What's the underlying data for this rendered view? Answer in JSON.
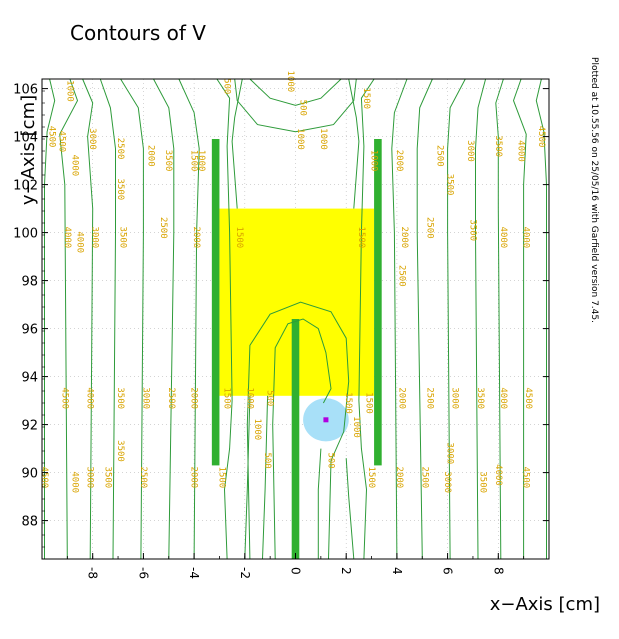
{
  "chart_data": {
    "type": "contour",
    "title": "Contours of V",
    "xlabel": "x−Axis [cm]",
    "ylabel": "y−Axis [cm]",
    "footnote": "Plotted at 10.55.56 on 25/05/16 with Garfield version 7.45.",
    "xlim": [
      -10,
      10
    ],
    "ylim": [
      86.4,
      106.4
    ],
    "x_ticks": [
      "-8",
      "-6",
      "-4",
      "-2",
      "0",
      "2",
      "4",
      "6",
      "8"
    ],
    "y_ticks": [
      "88",
      "90",
      "92",
      "94",
      "96",
      "98",
      "100",
      "102",
      "104",
      "106"
    ],
    "grid": true,
    "contour_color": "#2e9b3a",
    "label_color": "#d9a400",
    "regions": [
      {
        "name": "yellow-region",
        "color": "#ffff00",
        "x": [
          -3.0,
          3.1
        ],
        "y": [
          93.2,
          101.0
        ]
      },
      {
        "name": "left-electrode",
        "color": "#30b030",
        "x": [
          -3.3,
          -3.0
        ],
        "y": [
          90.3,
          103.9
        ]
      },
      {
        "name": "right-electrode",
        "color": "#30b030",
        "x": [
          3.1,
          3.4
        ],
        "y": [
          90.3,
          103.9
        ]
      },
      {
        "name": "center-electrode",
        "color": "#30b030",
        "x": [
          -0.15,
          0.15
        ],
        "y": [
          86.4,
          96.4
        ]
      },
      {
        "name": "light-blue-circle",
        "color": "#a8e0f8",
        "cx": 1.2,
        "cy": 92.2,
        "r": 0.9
      },
      {
        "name": "magenta-marker",
        "color": "#b000e0",
        "cx": 1.2,
        "cy": 92.2
      }
    ],
    "contour_labels": [
      {
        "text": "4500",
        "x": -9.3,
        "y": 103.8
      },
      {
        "text": "4000",
        "x": -8.8,
        "y": 102.8
      },
      {
        "text": "3000",
        "x": -8.1,
        "y": 103.9
      },
      {
        "text": "2500",
        "x": -7.0,
        "y": 103.5
      },
      {
        "text": "2000",
        "x": -5.8,
        "y": 103.2
      },
      {
        "text": "1500",
        "x": -4.1,
        "y": 103.0
      },
      {
        "text": "1000",
        "x": -3.8,
        "y": 103.0
      },
      {
        "text": "3500",
        "x": -5.1,
        "y": 103.0
      },
      {
        "text": "4500",
        "x": -9.7,
        "y": 104.0
      },
      {
        "text": "1000",
        "x": -9.0,
        "y": 105.9
      },
      {
        "text": "4500",
        "x": 9.6,
        "y": 104.0
      },
      {
        "text": "4000",
        "x": 8.8,
        "y": 103.4
      },
      {
        "text": "3500",
        "x": 7.9,
        "y": 103.6
      },
      {
        "text": "3000",
        "x": 6.8,
        "y": 103.4
      },
      {
        "text": "2500",
        "x": 5.6,
        "y": 103.2
      },
      {
        "text": "2000",
        "x": 4.0,
        "y": 103.0
      },
      {
        "text": "1000",
        "x": 3.0,
        "y": 103.0
      },
      {
        "text": "1500",
        "x": 2.7,
        "y": 105.6
      },
      {
        "text": "1000",
        "x": -0.3,
        "y": 106.3
      },
      {
        "text": "500",
        "x": 0.2,
        "y": 105.2
      },
      {
        "text": "1000",
        "x": 0.1,
        "y": 103.9
      },
      {
        "text": "1000",
        "x": 1.0,
        "y": 103.9
      },
      {
        "text": "500",
        "x": -2.8,
        "y": 106.1
      },
      {
        "text": "3500",
        "x": 6.0,
        "y": 102.0
      },
      {
        "text": "3500",
        "x": -7.0,
        "y": 101.8
      },
      {
        "text": "4000",
        "x": -9.1,
        "y": 99.8
      },
      {
        "text": "4000",
        "x": -8.6,
        "y": 99.6
      },
      {
        "text": "3000",
        "x": -8.0,
        "y": 99.8
      },
      {
        "text": "3500",
        "x": -6.9,
        "y": 99.8
      },
      {
        "text": "2500",
        "x": -5.3,
        "y": 100.2
      },
      {
        "text": "2000",
        "x": -4.0,
        "y": 99.8
      },
      {
        "text": "1500",
        "x": -2.3,
        "y": 99.8
      },
      {
        "text": "1500",
        "x": 2.5,
        "y": 99.8
      },
      {
        "text": "2000",
        "x": 4.2,
        "y": 99.8
      },
      {
        "text": "2500",
        "x": 5.2,
        "y": 100.2
      },
      {
        "text": "3500",
        "x": 6.9,
        "y": 100.1
      },
      {
        "text": "4000",
        "x": 8.1,
        "y": 99.8
      },
      {
        "text": "4000",
        "x": 9.0,
        "y": 99.8
      },
      {
        "text": "2500",
        "x": 4.1,
        "y": 98.2
      },
      {
        "text": "4500",
        "x": -9.2,
        "y": 93.1
      },
      {
        "text": "4000",
        "x": -8.2,
        "y": 93.1
      },
      {
        "text": "3500",
        "x": -7.0,
        "y": 93.1
      },
      {
        "text": "3000",
        "x": -6.0,
        "y": 93.1
      },
      {
        "text": "2500",
        "x": -5.0,
        "y": 93.1
      },
      {
        "text": "2000",
        "x": -4.1,
        "y": 93.1
      },
      {
        "text": "1500",
        "x": -2.8,
        "y": 93.1
      },
      {
        "text": "1000",
        "x": -1.9,
        "y": 93.1
      },
      {
        "text": "500",
        "x": -1.1,
        "y": 93.1
      },
      {
        "text": "1000",
        "x": -1.6,
        "y": 91.8
      },
      {
        "text": "1500",
        "x": 2.0,
        "y": 92.9
      },
      {
        "text": "1500",
        "x": 2.8,
        "y": 92.9
      },
      {
        "text": "1000",
        "x": 2.3,
        "y": 91.9
      },
      {
        "text": "2000",
        "x": 4.1,
        "y": 93.1
      },
      {
        "text": "2500",
        "x": 5.2,
        "y": 93.1
      },
      {
        "text": "3000",
        "x": 6.2,
        "y": 93.1
      },
      {
        "text": "3500",
        "x": 7.2,
        "y": 93.1
      },
      {
        "text": "4000",
        "x": 8.1,
        "y": 93.1
      },
      {
        "text": "4500",
        "x": 9.1,
        "y": 93.1
      },
      {
        "text": "3500",
        "x": -7.0,
        "y": 90.9
      },
      {
        "text": "3000",
        "x": 6.0,
        "y": 90.8
      },
      {
        "text": "500",
        "x": 1.3,
        "y": 90.5
      },
      {
        "text": "500",
        "x": -1.2,
        "y": 90.5
      },
      {
        "text": "4500",
        "x": -10.0,
        "y": 89.8
      },
      {
        "text": "4000",
        "x": -8.8,
        "y": 89.6
      },
      {
        "text": "3000",
        "x": -8.2,
        "y": 89.8
      },
      {
        "text": "3500",
        "x": -7.5,
        "y": 89.8
      },
      {
        "text": "2500",
        "x": -6.1,
        "y": 89.8
      },
      {
        "text": "2000",
        "x": -4.1,
        "y": 89.8
      },
      {
        "text": "1500",
        "x": -3.0,
        "y": 89.8
      },
      {
        "text": "1500",
        "x": 2.9,
        "y": 89.8
      },
      {
        "text": "2000",
        "x": 4.0,
        "y": 89.8
      },
      {
        "text": "2500",
        "x": 5.0,
        "y": 89.8
      },
      {
        "text": "3000",
        "x": 5.9,
        "y": 89.6
      },
      {
        "text": "3500",
        "x": 7.3,
        "y": 89.6
      },
      {
        "text": "4000",
        "x": 7.9,
        "y": 89.9
      },
      {
        "text": "4500",
        "x": 9.0,
        "y": 89.8
      }
    ],
    "contours": [
      {
        "level": "left-vertical-1",
        "points": [
          [
            -9.7,
            106.4
          ],
          [
            -9.5,
            105.5
          ],
          [
            -9.8,
            104.2
          ],
          [
            -9.9,
            102.0
          ],
          [
            -9.9,
            86.4
          ]
        ]
      },
      {
        "level": "left-vertical-2",
        "points": [
          [
            -8.9,
            106.4
          ],
          [
            -8.6,
            105.5
          ],
          [
            -9.3,
            104.1
          ],
          [
            -9.1,
            102.0
          ],
          [
            -9.0,
            86.4
          ]
        ]
      },
      {
        "level": "left-vertical-3",
        "points": [
          [
            -8.4,
            106.4
          ],
          [
            -8.0,
            105.4
          ],
          [
            -8.2,
            104.0
          ],
          [
            -8.0,
            101.0
          ],
          [
            -8.1,
            86.4
          ]
        ]
      },
      {
        "level": "left-vertical-4",
        "points": [
          [
            -7.7,
            106.4
          ],
          [
            -7.3,
            105.2
          ],
          [
            -7.1,
            103.5
          ],
          [
            -7.1,
            100.0
          ],
          [
            -7.2,
            86.4
          ]
        ]
      },
      {
        "level": "left-vertical-5",
        "points": [
          [
            -6.9,
            106.4
          ],
          [
            -6.2,
            105.2
          ],
          [
            -6.0,
            103.5
          ],
          [
            -6.0,
            100.0
          ],
          [
            -6.1,
            86.4
          ]
        ]
      },
      {
        "level": "left-vertical-6",
        "points": [
          [
            -5.6,
            106.4
          ],
          [
            -5.0,
            105.2
          ],
          [
            -4.8,
            103.5
          ],
          [
            -4.8,
            100.0
          ],
          [
            -5.0,
            86.4
          ]
        ]
      },
      {
        "level": "left-vertical-7",
        "points": [
          [
            -4.6,
            106.4
          ],
          [
            -4.0,
            105.0
          ],
          [
            -3.8,
            103.5
          ],
          [
            -3.9,
            100.0
          ],
          [
            -4.0,
            86.4
          ]
        ]
      },
      {
        "level": "left-inner-1",
        "points": [
          [
            -3.1,
            106.4
          ],
          [
            -2.6,
            105.6
          ],
          [
            -2.7,
            103.6
          ],
          [
            -2.6,
            100.0
          ],
          [
            -2.5,
            93.0
          ],
          [
            -2.6,
            91.0
          ],
          [
            -2.8,
            89.3
          ],
          [
            -2.7,
            86.4
          ]
        ]
      },
      {
        "level": "left-inner-2",
        "points": [
          [
            -2.1,
            106.4
          ],
          [
            -2.4,
            104.8
          ],
          [
            -2.5,
            103.8
          ],
          [
            -2.3,
            101.0
          ]
        ]
      },
      {
        "level": "left-inner-3",
        "points": [
          [
            -1.8,
            93.2
          ],
          [
            -1.9,
            89.3
          ],
          [
            -2.0,
            86.4
          ]
        ]
      },
      {
        "level": "left-inner-4",
        "points": [
          [
            -1.1,
            93.2
          ],
          [
            -1.2,
            89.3
          ],
          [
            -1.3,
            86.4
          ]
        ]
      },
      {
        "level": "right-vertical-1",
        "points": [
          [
            9.7,
            106.4
          ],
          [
            9.5,
            105.5
          ],
          [
            9.8,
            104.2
          ],
          [
            9.9,
            102.0
          ],
          [
            9.9,
            86.4
          ]
        ]
      },
      {
        "level": "right-vertical-2",
        "points": [
          [
            8.9,
            106.4
          ],
          [
            8.6,
            105.5
          ],
          [
            9.1,
            104.1
          ],
          [
            9.0,
            102.0
          ],
          [
            9.0,
            86.4
          ]
        ]
      },
      {
        "level": "right-vertical-3",
        "points": [
          [
            8.2,
            106.4
          ],
          [
            7.9,
            105.4
          ],
          [
            8.0,
            104.0
          ],
          [
            8.0,
            101.0
          ],
          [
            8.1,
            86.4
          ]
        ]
      },
      {
        "level": "right-vertical-4",
        "points": [
          [
            7.5,
            106.4
          ],
          [
            7.2,
            105.2
          ],
          [
            7.1,
            103.5
          ],
          [
            7.1,
            100.0
          ],
          [
            7.2,
            86.4
          ]
        ]
      },
      {
        "level": "right-vertical-5",
        "points": [
          [
            6.7,
            106.4
          ],
          [
            6.1,
            105.2
          ],
          [
            6.0,
            103.5
          ],
          [
            6.0,
            100.0
          ],
          [
            6.1,
            86.4
          ]
        ]
      },
      {
        "level": "right-vertical-6",
        "points": [
          [
            5.4,
            106.4
          ],
          [
            4.9,
            105.2
          ],
          [
            4.8,
            103.5
          ],
          [
            4.8,
            100.0
          ],
          [
            5.0,
            86.4
          ]
        ]
      },
      {
        "level": "right-vertical-7",
        "points": [
          [
            4.4,
            106.4
          ],
          [
            3.9,
            105.0
          ],
          [
            3.8,
            103.5
          ],
          [
            3.9,
            100.0
          ],
          [
            4.0,
            86.4
          ]
        ]
      },
      {
        "level": "right-inner-1",
        "points": [
          [
            3.1,
            106.4
          ],
          [
            2.6,
            105.6
          ],
          [
            2.7,
            103.6
          ],
          [
            2.6,
            100.0
          ],
          [
            2.5,
            93.0
          ],
          [
            2.6,
            91.0
          ],
          [
            2.8,
            89.3
          ],
          [
            2.7,
            86.4
          ]
        ]
      },
      {
        "level": "right-inner-2",
        "points": [
          [
            2.1,
            106.4
          ],
          [
            2.4,
            104.8
          ],
          [
            2.5,
            103.8
          ],
          [
            2.3,
            101.0
          ]
        ]
      },
      {
        "level": "top-arch-outer",
        "points": [
          [
            -2.4,
            106.4
          ],
          [
            -2.3,
            105.5
          ],
          [
            -1.5,
            104.5
          ],
          [
            0.0,
            104.2
          ],
          [
            1.5,
            104.5
          ],
          [
            2.3,
            105.5
          ],
          [
            2.4,
            106.4
          ]
        ]
      },
      {
        "level": "top-arch-inner",
        "points": [
          [
            -1.8,
            106.4
          ],
          [
            -1.0,
            105.6
          ],
          [
            0.0,
            105.3
          ],
          [
            1.0,
            105.6
          ],
          [
            1.8,
            106.4
          ]
        ]
      },
      {
        "level": "u-outer",
        "points": [
          [
            -1.8,
            86.4
          ],
          [
            -1.9,
            92.0
          ],
          [
            -1.8,
            95.3
          ],
          [
            -1.0,
            96.6
          ],
          [
            0.2,
            97.1
          ],
          [
            1.4,
            96.7
          ],
          [
            2.0,
            95.6
          ],
          [
            2.1,
            93.8
          ],
          [
            1.9,
            91.7
          ],
          [
            1.4,
            90.5
          ],
          [
            1.3,
            86.4
          ]
        ]
      },
      {
        "level": "u-inner",
        "points": [
          [
            -0.8,
            86.4
          ],
          [
            -0.9,
            92.0
          ],
          [
            -0.8,
            95.2
          ],
          [
            -0.3,
            96.2
          ],
          [
            0.3,
            96.4
          ],
          [
            0.9,
            96.0
          ],
          [
            1.2,
            95.0
          ],
          [
            1.4,
            93.5
          ],
          [
            1.1,
            92.9
          ]
        ]
      },
      {
        "level": "u-bottom-right",
        "points": [
          [
            0.9,
            86.4
          ],
          [
            0.9,
            89.3
          ],
          [
            1.0,
            91.0
          ]
        ]
      },
      {
        "level": "u-right-tail",
        "points": [
          [
            2.0,
            90.6
          ],
          [
            2.1,
            89.0
          ],
          [
            2.3,
            86.4
          ]
        ]
      }
    ]
  }
}
